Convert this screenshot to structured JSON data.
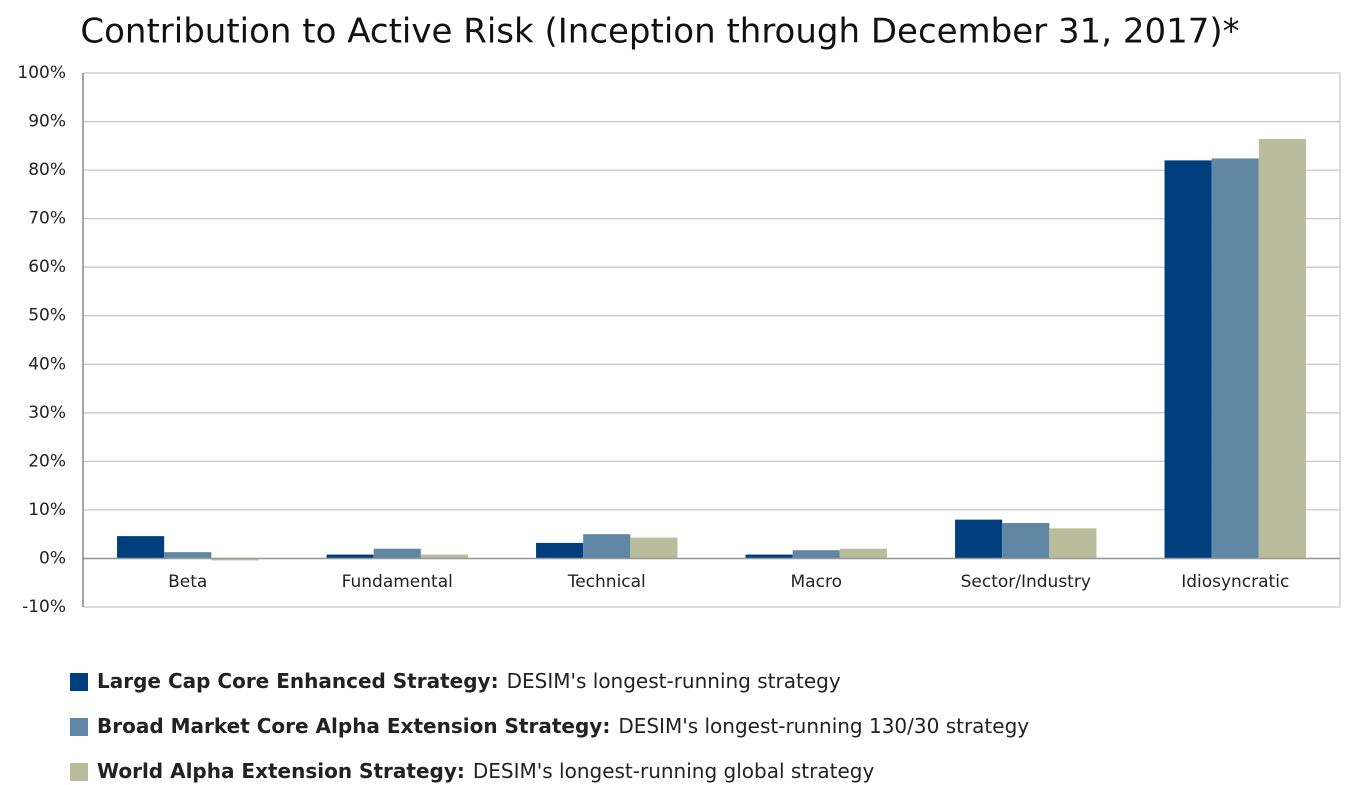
{
  "chart_data": {
    "type": "bar",
    "title": "Contribution to Active Risk (Inception through December 31, 2017)*",
    "categories": [
      "Beta",
      "Fundamental",
      "Technical",
      "Macro",
      "Sector/Industry",
      "Idiosyncratic"
    ],
    "series": [
      {
        "name": "Large Cap Core Enhanced Strategy:",
        "description": "DESIM's longest-running  strategy",
        "color": "#003f7d",
        "values": [
          4.6,
          0.8,
          3.2,
          0.8,
          8.0,
          82.0
        ]
      },
      {
        "name": "Broad Market Core Alpha Extension Strategy:",
        "description": "DESIM's longest-running  130/30  strategy",
        "color": "#5f87a3",
        "values": [
          1.3,
          2.0,
          5.0,
          1.7,
          7.3,
          82.4
        ]
      },
      {
        "name": "World Alpha Extension Strategy:",
        "description": "DESIM's longest-running  global strategy",
        "color": "#b9bd9b",
        "values": [
          -0.4,
          0.8,
          4.3,
          2.0,
          6.2,
          86.4
        ]
      }
    ],
    "ylim": [
      -10,
      100
    ],
    "yticks": [
      {
        "value": -10,
        "label": "-10%"
      },
      {
        "value": 0,
        "label": "0%"
      },
      {
        "value": 10,
        "label": "10%"
      },
      {
        "value": 20,
        "label": "20%"
      },
      {
        "value": 30,
        "label": "30%"
      },
      {
        "value": 40,
        "label": "40%"
      },
      {
        "value": 50,
        "label": "50%"
      },
      {
        "value": 60,
        "label": "60%"
      },
      {
        "value": 70,
        "label": "70%"
      },
      {
        "value": 80,
        "label": "80%"
      },
      {
        "value": 90,
        "label": "90%"
      },
      {
        "value": 100,
        "label": "100%"
      }
    ],
    "grid": true
  }
}
